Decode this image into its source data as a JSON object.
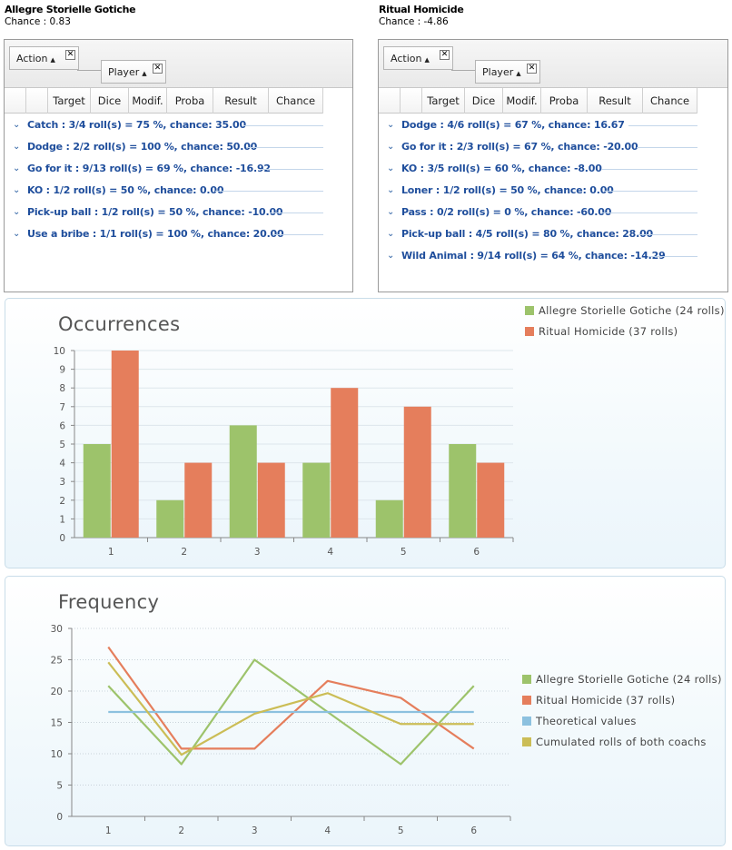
{
  "teams": [
    {
      "name": "Allegre Storielle Gotiche",
      "chance": "Chance : 0.83",
      "group_chips": {
        "action": "Action",
        "player": "Player"
      },
      "columns": [
        "Target",
        "Dice",
        "Modif.",
        "Proba",
        "Result",
        "Chance"
      ],
      "rows": [
        {
          "label": "Catch :  3/4 roll(s) = 75 %, chance: 35.00"
        },
        {
          "label": "Dodge :  2/2 roll(s) = 100 %, chance: 50.00"
        },
        {
          "label": "Go for it :  9/13 roll(s) = 69 %, chance: -16.92"
        },
        {
          "label": "KO :  1/2 roll(s) = 50 %, chance: 0.00"
        },
        {
          "label": "Pick-up ball :  1/2 roll(s) = 50 %, chance: -10.00"
        },
        {
          "label": "Use a bribe :  1/1 roll(s) = 100 %, chance: 20.00"
        }
      ]
    },
    {
      "name": "Ritual Homicide",
      "chance": "Chance : -4.86",
      "group_chips": {
        "action": "Action",
        "player": "Player"
      },
      "columns": [
        "Target",
        "Dice",
        "Modif.",
        "Proba",
        "Result",
        "Chance"
      ],
      "rows": [
        {
          "label": "Dodge :  4/6 roll(s) = 67 %, chance: 16.67"
        },
        {
          "label": "Go for it :  2/3 roll(s) = 67 %, chance: -20.00"
        },
        {
          "label": "KO :  3/5 roll(s) = 60 %, chance: -8.00"
        },
        {
          "label": "Loner :  1/2 roll(s) = 50 %, chance: 0.00"
        },
        {
          "label": "Pass :  0/2 roll(s) = 0 %, chance: -60.00"
        },
        {
          "label": "Pick-up ball :  4/5 roll(s) = 80 %, chance: 28.00"
        },
        {
          "label": "Wild Animal :  9/14 roll(s) = 64 %, chance: -14.29"
        }
      ]
    }
  ],
  "icons": {
    "expand": "chevron-down-icon",
    "sort": "sort-up-icon",
    "remove": "close-icon"
  },
  "colors": {
    "green": "#9dc36b",
    "orange": "#e57e5c",
    "blue": "#8cc1df",
    "gold": "#cbbd56",
    "row_text": "#1f4e9c"
  },
  "chart_data": [
    {
      "type": "bar",
      "title": "Occurrences",
      "categories": [
        "1",
        "2",
        "3",
        "4",
        "5",
        "6"
      ],
      "ylim": [
        0,
        10
      ],
      "yticks": [
        "0",
        "1",
        "2",
        "3",
        "4",
        "5",
        "6",
        "7",
        "8",
        "9",
        "10"
      ],
      "legend_position": "top-right",
      "series": [
        {
          "name": "Allegre Storielle Gotiche (24 rolls)",
          "values": [
            5,
            2,
            6,
            4,
            2,
            5
          ]
        },
        {
          "name": "Ritual Homicide (37 rolls)",
          "values": [
            10,
            4,
            4,
            8,
            7,
            4
          ]
        }
      ]
    },
    {
      "type": "line",
      "title": "Frequency",
      "categories": [
        "1",
        "2",
        "3",
        "4",
        "5",
        "6"
      ],
      "ylim": [
        0,
        30
      ],
      "yticks": [
        "0",
        "5",
        "10",
        "15",
        "20",
        "25",
        "30"
      ],
      "legend_position": "right",
      "series": [
        {
          "name": "Allegre Storielle Gotiche (24 rolls)",
          "values": [
            20.83,
            8.33,
            25.0,
            16.67,
            8.33,
            20.83
          ]
        },
        {
          "name": "Ritual Homicide (37 rolls)",
          "values": [
            27.03,
            10.81,
            10.81,
            21.62,
            18.92,
            10.81
          ]
        },
        {
          "name": "Theoretical values",
          "values": [
            16.67,
            16.67,
            16.67,
            16.67,
            16.67,
            16.67
          ]
        },
        {
          "name": "Cumulated rolls of both coachs",
          "values": [
            24.59,
            9.84,
            16.39,
            19.67,
            14.75,
            14.75
          ]
        }
      ]
    }
  ]
}
